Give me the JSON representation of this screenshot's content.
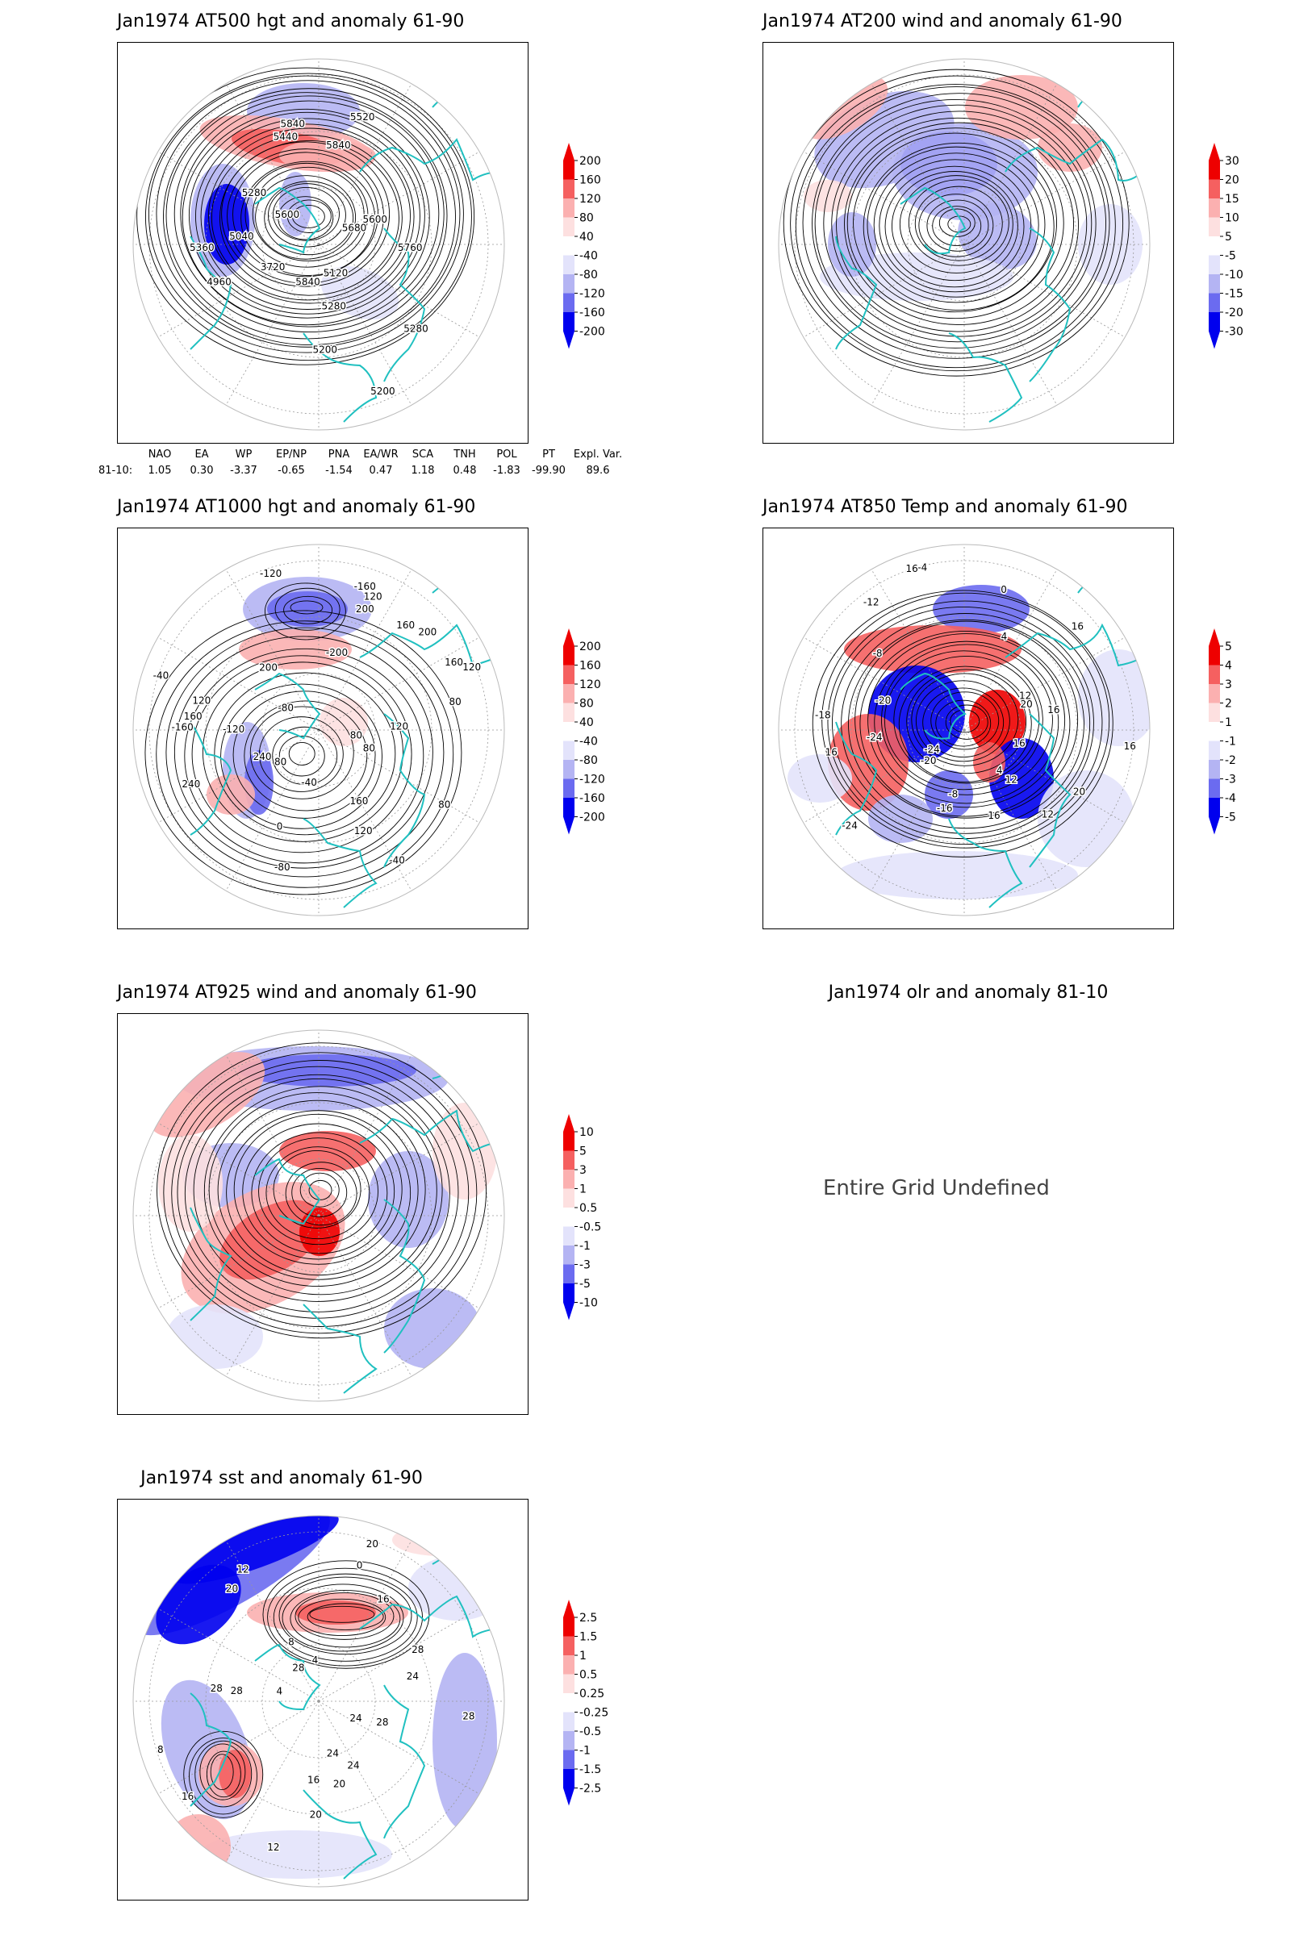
{
  "palette": {
    "red3": "#ee0000",
    "red2": "#f56060",
    "red1": "#fbb0b0",
    "red0": "#fde0e0",
    "blue0": "#e3e3fb",
    "blue1": "#b4b4f3",
    "blue2": "#6b6bf0",
    "blue3": "#0000ee",
    "coast": "#20c0c0"
  },
  "panels": [
    {
      "id": "at500",
      "title": "Jan1974 AT500 hgt and anomaly 61-90",
      "colorbar": [
        "200",
        "160",
        "120",
        "80",
        "40",
        "-40",
        "-80",
        "-120",
        "-160",
        "-200"
      ],
      "contour_labels": [
        "5280",
        "5200",
        "5280",
        "5120",
        "5200",
        "5840",
        "4960",
        "3720",
        "5040",
        "5360",
        "5600",
        "5280",
        "5440",
        "5840",
        "5840",
        "5520",
        "5600",
        "5680",
        "5760"
      ]
    },
    {
      "id": "at200",
      "title": "Jan1974 AT200 wind and anomaly 61-90",
      "colorbar": [
        "30",
        "20",
        "15",
        "10",
        "5",
        "-5",
        "-10",
        "-15",
        "-20",
        "-30"
      ],
      "contour_labels": []
    },
    {
      "id": "at1000",
      "title": "Jan1974 AT1000 hgt and anomaly 61-90",
      "colorbar": [
        "200",
        "160",
        "120",
        "80",
        "40",
        "-40",
        "-80",
        "-120",
        "-160",
        "-200"
      ],
      "contour_labels": [
        "80",
        "80",
        "120",
        "-40",
        "160",
        "0",
        "-40",
        "80",
        "-80",
        "240",
        "240",
        "-160",
        "-120",
        "120",
        "160",
        "-40",
        "-80",
        "-120",
        "200",
        "-200",
        "-160",
        "120",
        "200",
        "160",
        "200",
        "160",
        "120",
        "120",
        "80",
        "80"
      ]
    },
    {
      "id": "at850",
      "title": "Jan1974 AT850 Temp and anomaly 61-90",
      "colorbar": [
        "5",
        "4",
        "3",
        "2",
        "1",
        "-1",
        "-2",
        "-3",
        "-4",
        "-5"
      ],
      "contour_labels": [
        "16",
        "12",
        "12",
        "4",
        "-8",
        "16",
        "-16",
        "-24",
        "-24",
        "-20",
        "-18",
        "-24",
        "16",
        "-20",
        "-12",
        "-8",
        "-4",
        "0",
        "16",
        "16",
        "4",
        "20",
        "16",
        "12",
        "20",
        "16"
      ]
    },
    {
      "id": "at925",
      "title": "Jan1974 AT925 wind and anomaly 61-90",
      "colorbar": [
        "10",
        "5",
        "3",
        "1",
        "0.5",
        "-0.5",
        "-1",
        "-3",
        "-5",
        "-10"
      ],
      "contour_labels": []
    },
    {
      "id": "olr",
      "title": "Jan1974 olr and anomaly 81-10",
      "undefined_text": "Entire Grid Undefined"
    },
    {
      "id": "sst",
      "title": "Jan1974 sst and anomaly 61-90",
      "colorbar": [
        "2.5",
        "1.5",
        "1",
        "0.5",
        "0.25",
        "-0.25",
        "-0.5",
        "-1",
        "-1.5",
        "-2.5"
      ],
      "contour_labels": [
        "24",
        "24",
        "24",
        "20",
        "20",
        "16",
        "16",
        "12",
        "8",
        "4",
        "28",
        "28",
        "28",
        "20",
        "12",
        "8",
        "4",
        "0",
        "20",
        "16",
        "24",
        "28",
        "28",
        "28"
      ]
    }
  ],
  "teleconnection": {
    "headers": [
      "NAO",
      "EA",
      "WP",
      "EP/NP",
      "PNA",
      "EA/WR",
      "SCA",
      "TNH",
      "POL",
      "PT",
      "Expl. Var."
    ],
    "row_label": "81-10:",
    "values": [
      "1.05",
      "0.30",
      "-3.37",
      "-0.65",
      "-1.54",
      "0.47",
      "1.18",
      "0.48",
      "-1.83",
      "-99.90",
      "89.6"
    ]
  }
}
